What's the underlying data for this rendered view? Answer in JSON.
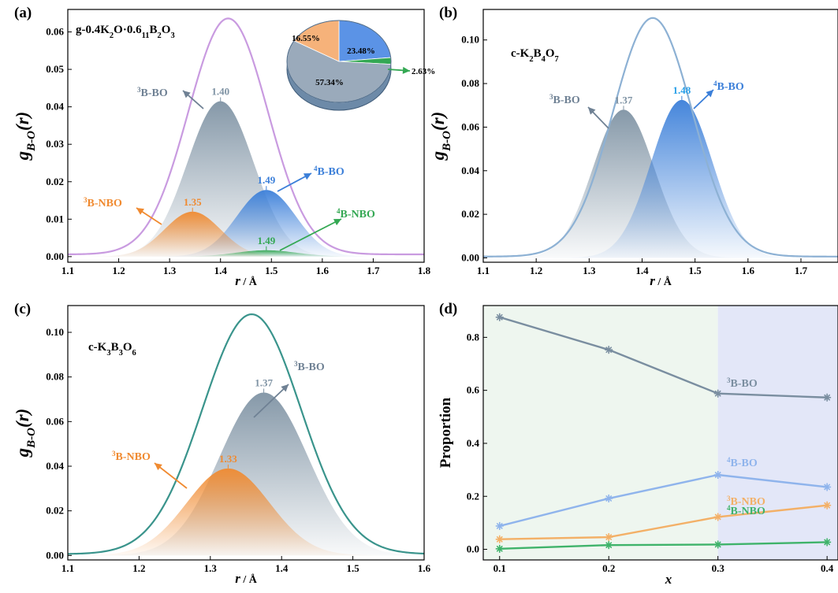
{
  "colors": {
    "bo3": "#7f93a4",
    "bo4": "#3b7fd9",
    "nbo3": "#f08a30",
    "nbo4": "#34a853",
    "envelope_a": "#c99be0",
    "envelope_b": "#8db1d4",
    "envelope_c": "#3a948c",
    "region_green": "#eef6ef",
    "region_blue": "#e3e7f8",
    "d_bo3": "#7a8ea0",
    "d_bo4": "#8fb4ec",
    "d_nbo3": "#f3b067",
    "d_nbo4": "#3fb36a"
  },
  "chart_data": [
    {
      "panel": "(a)",
      "type": "area",
      "composition": "g-0.4K2O·0.611B2O3",
      "composition_parts": [
        "g-0.4K",
        "2",
        "O·0.6",
        "11",
        "B",
        "2",
        "O",
        "3"
      ],
      "xlabel": "r / Å",
      "ylabel": "gB-O(r)",
      "xlim": [
        1.1,
        1.8
      ],
      "ylim": [
        -0.0015,
        0.066
      ],
      "xticks": [
        "1.1",
        "1.2",
        "1.3",
        "1.4",
        "1.5",
        "1.6",
        "1.7",
        "1.8"
      ],
      "yticks": [
        "0.00",
        "0.01",
        "0.02",
        "0.03",
        "0.04",
        "0.05",
        "0.06"
      ],
      "envelope": {
        "center": 1.415,
        "height": 0.063,
        "sigma": 0.078
      },
      "components": [
        {
          "label": "3B-BO",
          "sup": "3",
          "base": "B-BO",
          "key": "bo3",
          "center": 1.4,
          "height": 0.0415,
          "sigma": 0.065,
          "peak_label": "1.40"
        },
        {
          "label": "4B-BO",
          "sup": "4",
          "base": "B-BO",
          "key": "bo4",
          "center": 1.49,
          "height": 0.0178,
          "sigma": 0.058,
          "peak_label": "1.49"
        },
        {
          "label": "3B-NBO",
          "sup": "3",
          "base": "B-NBO",
          "key": "nbo3",
          "center": 1.345,
          "height": 0.012,
          "sigma": 0.055,
          "peak_label": "1.35"
        },
        {
          "label": "4B-NBO",
          "sup": "4",
          "base": "B-NBO",
          "key": "nbo4",
          "center": 1.49,
          "height": 0.0017,
          "sigma": 0.06,
          "peak_label": "1.49"
        }
      ],
      "pie": {
        "slices": [
          {
            "label": "57.34%",
            "value": 57.34,
            "key": "bo3"
          },
          {
            "label": "23.48%",
            "value": 23.48,
            "key": "bo4"
          },
          {
            "label": "16.55%",
            "value": 16.55,
            "key": "nbo3"
          },
          {
            "label": "2.63%",
            "value": 2.63,
            "key": "nbo4"
          }
        ]
      }
    },
    {
      "panel": "(b)",
      "type": "area",
      "composition": "c-K2B4O7",
      "composition_parts": [
        "c-K",
        "2",
        "B",
        "4",
        "O",
        "7"
      ],
      "xlabel": "r / Å",
      "ylabel": "gB-O(r)",
      "xlim": [
        1.1,
        1.77
      ],
      "ylim": [
        -0.002,
        0.114
      ],
      "xticks": [
        "1.1",
        "1.2",
        "1.3",
        "1.4",
        "1.5",
        "1.6",
        "1.7"
      ],
      "yticks": [
        "0.00",
        "0.02",
        "0.04",
        "0.06",
        "0.08",
        "0.10"
      ],
      "envelope": {
        "center": 1.42,
        "height": 0.1095,
        "sigma": 0.075
      },
      "components": [
        {
          "label": "3B-BO",
          "sup": "3",
          "base": "B-BO",
          "key": "bo3",
          "center": 1.365,
          "height": 0.068,
          "sigma": 0.058,
          "peak_label": "1.37"
        },
        {
          "label": "4B-BO",
          "sup": "4",
          "base": "B-BO",
          "key": "bo4",
          "center": 1.475,
          "height": 0.0725,
          "sigma": 0.058,
          "peak_label": "1.48"
        }
      ]
    },
    {
      "panel": "(c)",
      "type": "area",
      "composition": "c-K3B3O6",
      "composition_parts": [
        "c-K",
        "3",
        "B",
        "3",
        "O",
        "6"
      ],
      "xlabel": "r / Å",
      "ylabel": "gB-O(r)",
      "xlim": [
        1.1,
        1.6
      ],
      "ylim": [
        -0.002,
        0.112
      ],
      "xticks": [
        "1.1",
        "1.2",
        "1.3",
        "1.4",
        "1.5",
        "1.6"
      ],
      "yticks": [
        "0.00",
        "0.02",
        "0.04",
        "0.06",
        "0.08",
        "0.10"
      ],
      "envelope": {
        "center": 1.358,
        "height": 0.1075,
        "sigma": 0.069
      },
      "components": [
        {
          "label": "3B-BO",
          "sup": "3",
          "base": "B-BO",
          "key": "bo3",
          "center": 1.375,
          "height": 0.073,
          "sigma": 0.062,
          "peak_label": "1.37"
        },
        {
          "label": "3B-NBO",
          "sup": "3",
          "base": "B-NBO",
          "key": "nbo3",
          "center": 1.325,
          "height": 0.039,
          "sigma": 0.058,
          "peak_label": "1.33"
        }
      ]
    },
    {
      "panel": "(d)",
      "type": "line",
      "xlabel": "x",
      "ylabel": "Proportion",
      "xlim": [
        0.085,
        0.41
      ],
      "ylim": [
        -0.04,
        0.92
      ],
      "xticks": [
        "0.1",
        "0.2",
        "0.3",
        "0.4"
      ],
      "yticks": [
        "0.0",
        "0.2",
        "0.4",
        "0.6",
        "0.8"
      ],
      "x": [
        0.1,
        0.2,
        0.3,
        0.4
      ],
      "regions": [
        {
          "from": 0.085,
          "to": 0.3,
          "key": "region_green"
        },
        {
          "from": 0.3,
          "to": 0.41,
          "key": "region_blue"
        }
      ],
      "series": [
        {
          "name": "3B-BO",
          "sup": "3",
          "base": "B-BO",
          "key": "d_bo3",
          "values": [
            0.876,
            0.753,
            0.588,
            0.573
          ]
        },
        {
          "name": "4B-BO",
          "sup": "4",
          "base": "B-BO",
          "key": "d_bo4",
          "values": [
            0.088,
            0.192,
            0.281,
            0.235
          ]
        },
        {
          "name": "3B-NBO",
          "sup": "3",
          "base": "B-NBO",
          "key": "d_nbo3",
          "values": [
            0.038,
            0.046,
            0.122,
            0.166
          ]
        },
        {
          "name": "4B-NBO",
          "sup": "4",
          "base": "B-NBO",
          "key": "d_nbo4",
          "values": [
            0.002,
            0.016,
            0.018,
            0.027
          ]
        }
      ]
    }
  ]
}
